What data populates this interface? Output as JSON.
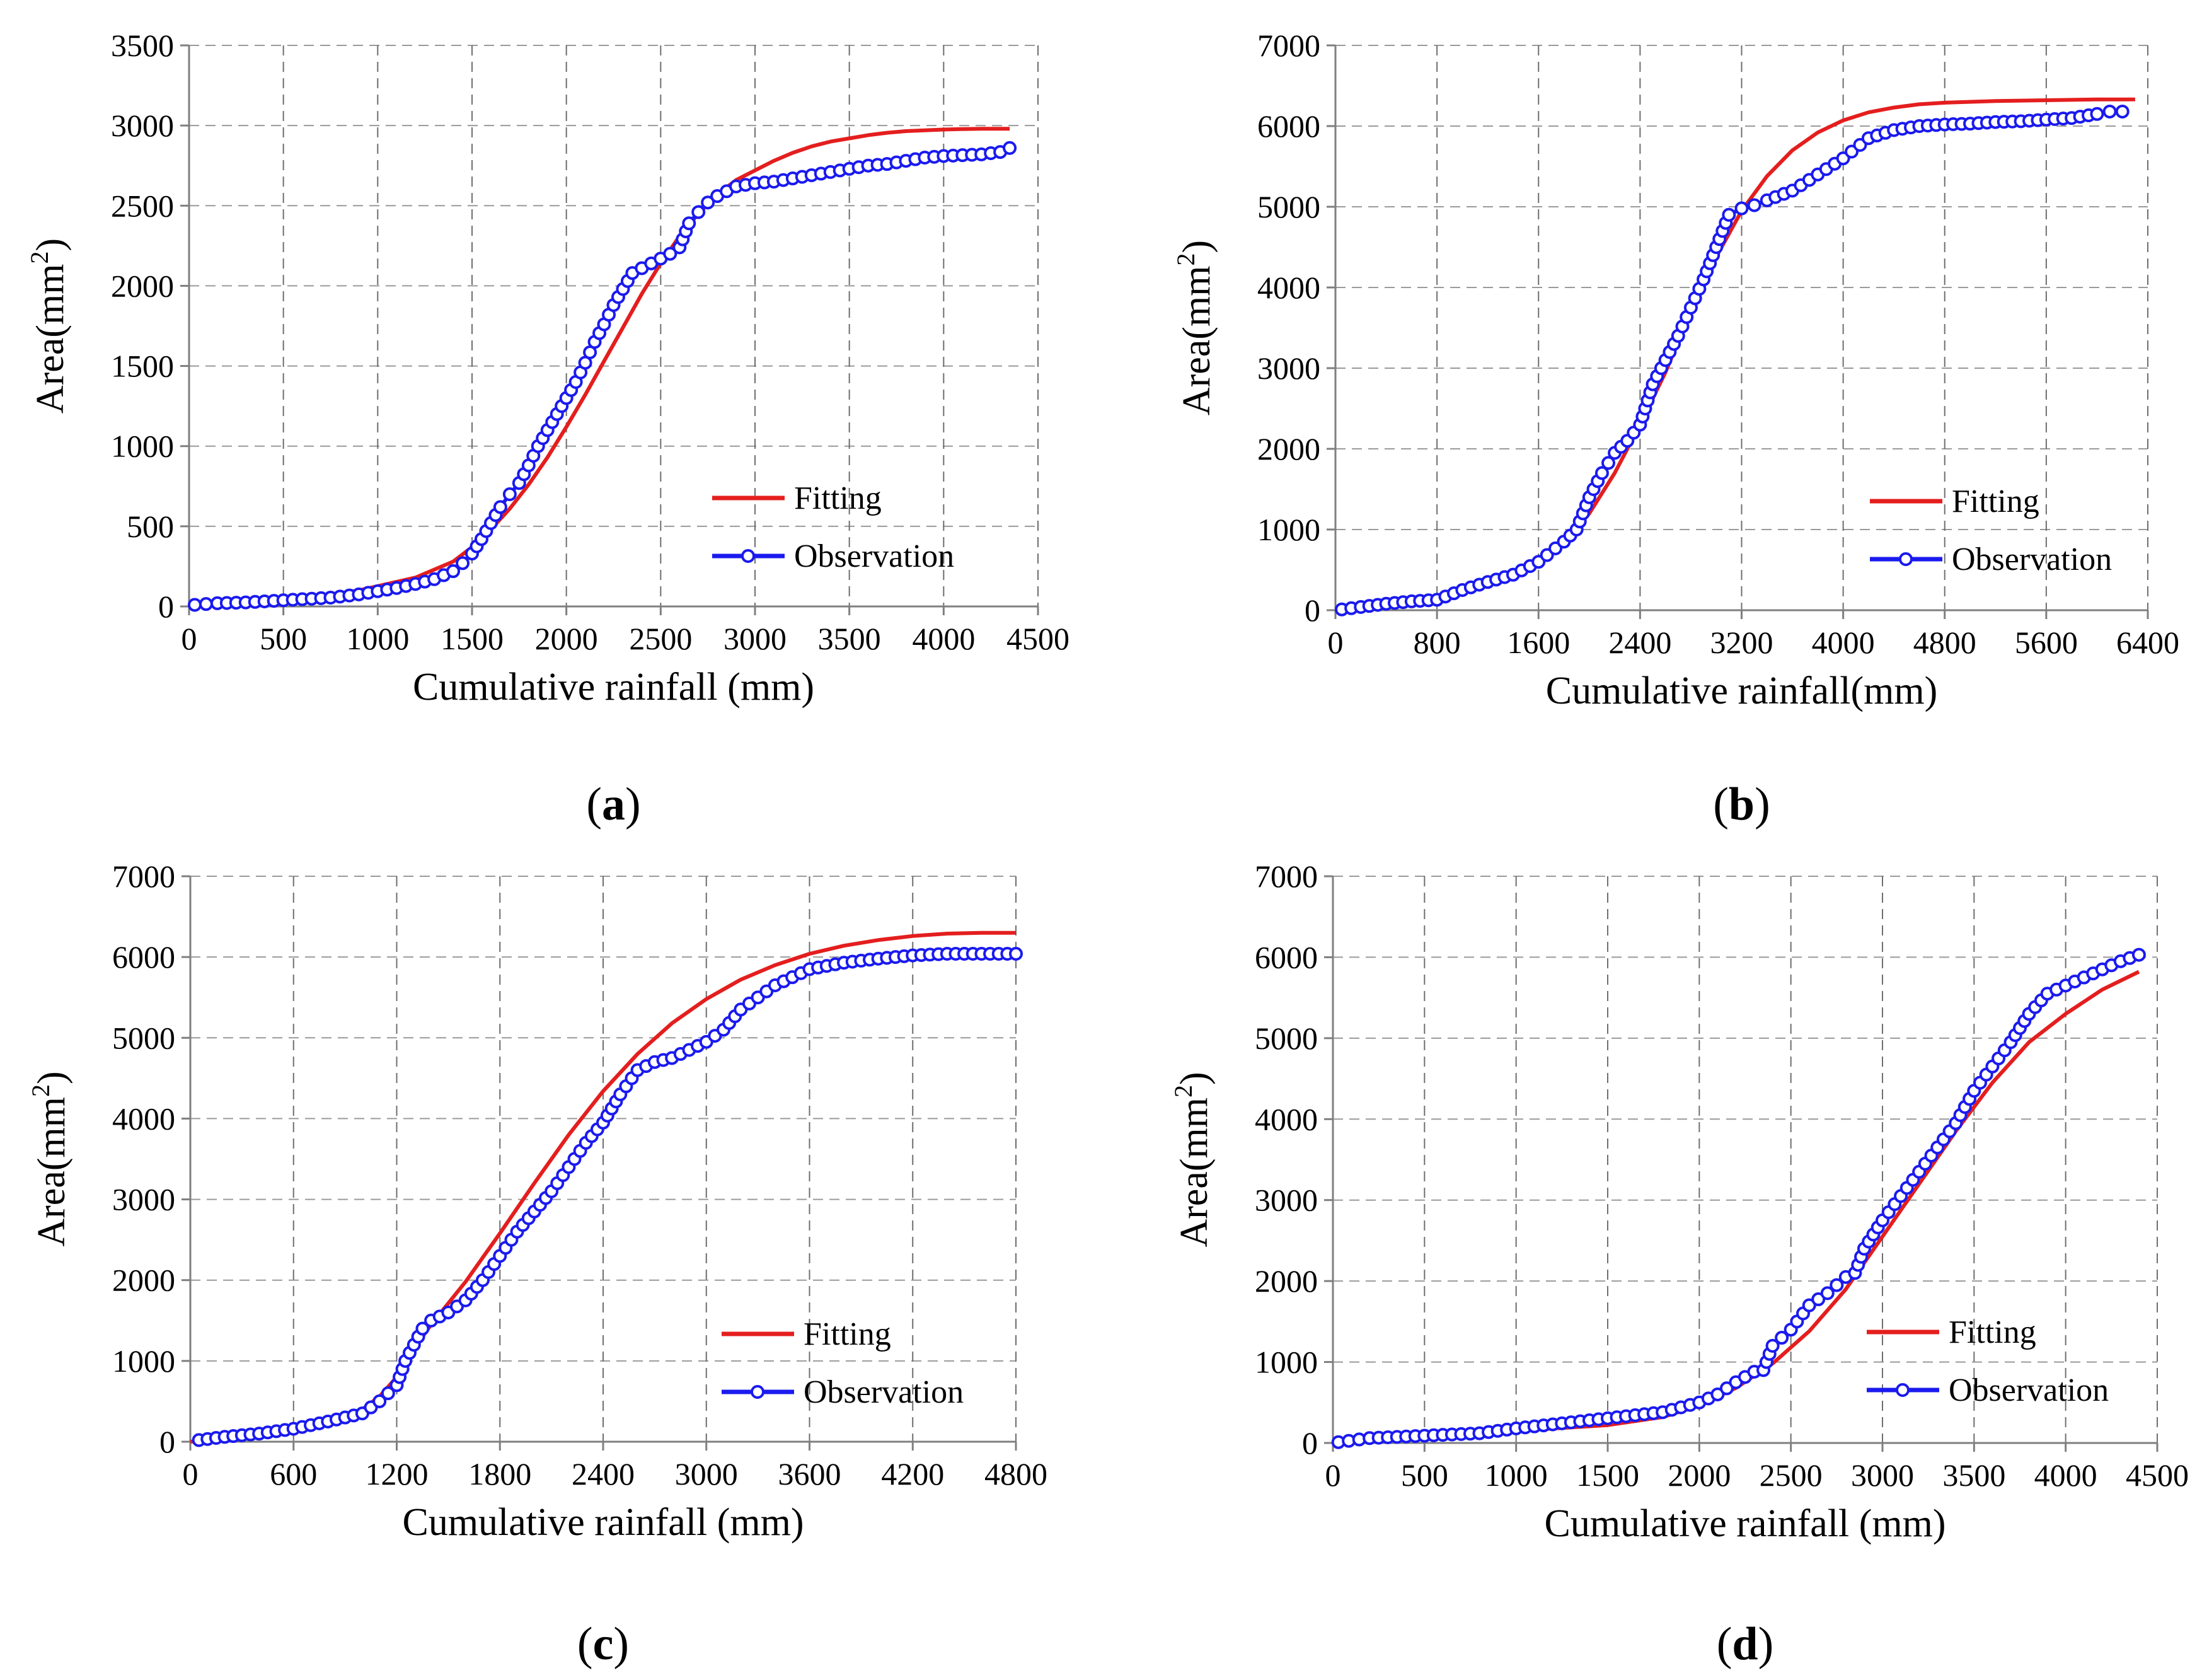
{
  "figure": {
    "fitting_color": "#e41e1e",
    "observation_color": "#1a1aef"
  },
  "chart_data": [
    {
      "id": "a",
      "type": "line",
      "panel_label": "a",
      "xlabel": "Cumulative rainfall (mm)",
      "ylabel": "Area(mm",
      "ylabel_sup": "2",
      "ylabel_end": ")",
      "xlim": [
        0,
        4500
      ],
      "ylim": [
        0,
        3500
      ],
      "xticks": [
        0,
        500,
        1000,
        1500,
        2000,
        2500,
        3000,
        3500,
        4000,
        4500
      ],
      "yticks": [
        0,
        500,
        1000,
        1500,
        2000,
        2500,
        3000,
        3500
      ],
      "legend": [
        "Fitting",
        "Observation"
      ],
      "legend_position": "bottom-right",
      "series": [
        {
          "name": "Fitting",
          "x": [
            0,
            300,
            600,
            900,
            1200,
            1400,
            1500,
            1600,
            1700,
            1800,
            1900,
            2000,
            2100,
            2200,
            2300,
            2400,
            2500,
            2600,
            2700,
            2800,
            2900,
            3000,
            3100,
            3200,
            3300,
            3400,
            3500,
            3600,
            3700,
            3800,
            3900,
            4000,
            4100,
            4200,
            4300,
            4350
          ],
          "y": [
            0,
            20,
            50,
            100,
            180,
            280,
            370,
            480,
            610,
            760,
            930,
            1120,
            1320,
            1530,
            1740,
            1950,
            2140,
            2310,
            2450,
            2570,
            2660,
            2720,
            2780,
            2830,
            2870,
            2900,
            2920,
            2940,
            2955,
            2965,
            2970,
            2975,
            2978,
            2980,
            2980,
            2980
          ]
        },
        {
          "name": "Observation",
          "x": [
            30,
            150,
            300,
            450,
            600,
            750,
            900,
            1000,
            1100,
            1200,
            1300,
            1400,
            1450,
            1500,
            1550,
            1600,
            1650,
            1700,
            1750,
            1800,
            1850,
            1900,
            1950,
            2000,
            2050,
            2100,
            2150,
            2200,
            2250,
            2300,
            2350,
            2400,
            2450,
            2500,
            2550,
            2600,
            2650,
            2700,
            2750,
            2800,
            2900,
            3000,
            3100,
            3200,
            3300,
            3400,
            3500,
            3600,
            3700,
            3800,
            3900,
            4000,
            4100,
            4200,
            4300,
            4350
          ],
          "y": [
            10,
            20,
            25,
            35,
            45,
            55,
            75,
            95,
            115,
            140,
            170,
            220,
            270,
            330,
            420,
            520,
            620,
            700,
            770,
            880,
            1000,
            1100,
            1200,
            1300,
            1400,
            1520,
            1650,
            1760,
            1880,
            1980,
            2080,
            2110,
            2140,
            2170,
            2200,
            2240,
            2390,
            2460,
            2520,
            2560,
            2620,
            2640,
            2650,
            2670,
            2690,
            2710,
            2730,
            2750,
            2760,
            2780,
            2800,
            2810,
            2815,
            2820,
            2835,
            2860
          ]
        }
      ]
    },
    {
      "id": "b",
      "type": "line",
      "panel_label": "b",
      "xlabel": "Cumulative rainfall(mm)",
      "ylabel": "Area(mm",
      "ylabel_sup": "2",
      "ylabel_end": ")",
      "xlim": [
        0,
        6400
      ],
      "ylim": [
        0,
        7000
      ],
      "xticks": [
        0,
        800,
        1600,
        2400,
        3200,
        4000,
        4800,
        5600,
        6400
      ],
      "yticks": [
        0,
        1000,
        2000,
        3000,
        4000,
        5000,
        6000,
        7000
      ],
      "legend": [
        "Fitting",
        "Observation"
      ],
      "legend_position": "bottom-right",
      "series": [
        {
          "name": "Fitting",
          "x": [
            0,
            400,
            800,
            1000,
            1200,
            1400,
            1600,
            1800,
            2000,
            2200,
            2400,
            2600,
            2800,
            3000,
            3200,
            3400,
            3600,
            3800,
            4000,
            4200,
            4400,
            4600,
            4800,
            5200,
            5600,
            6000,
            6300
          ],
          "y": [
            0,
            40,
            110,
            200,
            330,
            450,
            620,
            830,
            1200,
            1700,
            2300,
            2950,
            3700,
            4380,
            4950,
            5380,
            5700,
            5920,
            6070,
            6170,
            6230,
            6270,
            6290,
            6310,
            6320,
            6330,
            6330
          ]
        },
        {
          "name": "Observation",
          "x": [
            50,
            200,
            400,
            600,
            800,
            1000,
            1200,
            1400,
            1600,
            1800,
            1900,
            2000,
            2100,
            2200,
            2300,
            2400,
            2500,
            2600,
            2700,
            2800,
            2900,
            3000,
            3100,
            3200,
            3300,
            3400,
            3600,
            3800,
            4000,
            4200,
            4400,
            4600,
            4800,
            5000,
            5200,
            5400,
            5600,
            5800,
            6000,
            6100,
            6200
          ],
          "y": [
            10,
            40,
            80,
            110,
            130,
            250,
            350,
            440,
            600,
            850,
            1000,
            1400,
            1700,
            1950,
            2100,
            2300,
            2800,
            3100,
            3400,
            3750,
            4100,
            4500,
            4900,
            4980,
            5020,
            5080,
            5200,
            5400,
            5600,
            5850,
            5950,
            6000,
            6020,
            6030,
            6050,
            6060,
            6080,
            6100,
            6150,
            6180,
            6180
          ]
        }
      ]
    },
    {
      "id": "c",
      "type": "line",
      "panel_label": "c",
      "xlabel": "Cumulative rainfall (mm)",
      "ylabel": "Area(mm",
      "ylabel_sup": "2",
      "ylabel_end": ")",
      "xlim": [
        0,
        4800
      ],
      "ylim": [
        0,
        7000
      ],
      "xticks": [
        0,
        600,
        1200,
        1800,
        2400,
        3000,
        3600,
        4200,
        4800
      ],
      "yticks": [
        0,
        1000,
        2000,
        3000,
        4000,
        5000,
        6000,
        7000
      ],
      "legend": [
        "Fitting",
        "Observation"
      ],
      "legend_position": "bottom-right",
      "series": [
        {
          "name": "Fitting",
          "x": [
            0,
            300,
            600,
            900,
            1000,
            1100,
            1200,
            1300,
            1400,
            1600,
            1800,
            2000,
            2200,
            2400,
            2600,
            2800,
            3000,
            3200,
            3400,
            3600,
            3800,
            4000,
            4200,
            4400,
            4600,
            4800
          ],
          "y": [
            0,
            60,
            150,
            300,
            400,
            560,
            800,
            1150,
            1450,
            1980,
            2580,
            3200,
            3800,
            4340,
            4800,
            5180,
            5480,
            5720,
            5900,
            6040,
            6140,
            6210,
            6260,
            6290,
            6300,
            6300
          ]
        },
        {
          "name": "Observation",
          "x": [
            50,
            200,
            400,
            600,
            800,
            1000,
            1100,
            1200,
            1250,
            1300,
            1350,
            1400,
            1500,
            1600,
            1700,
            1800,
            1900,
            2000,
            2100,
            2200,
            2300,
            2400,
            2500,
            2600,
            2700,
            2800,
            2900,
            3000,
            3100,
            3200,
            3300,
            3400,
            3500,
            3600,
            3800,
            4000,
            4200,
            4400,
            4600,
            4800
          ],
          "y": [
            20,
            60,
            100,
            160,
            250,
            350,
            500,
            700,
            1000,
            1200,
            1400,
            1500,
            1600,
            1750,
            2000,
            2300,
            2600,
            2850,
            3100,
            3400,
            3700,
            3950,
            4300,
            4600,
            4700,
            4750,
            4850,
            4950,
            5100,
            5350,
            5500,
            5650,
            5750,
            5850,
            5930,
            5980,
            6020,
            6040,
            6040,
            6040
          ]
        }
      ]
    },
    {
      "id": "d",
      "type": "line",
      "panel_label": "d",
      "xlabel": "Cumulative rainfall (mm)",
      "ylabel": "Area(mm",
      "ylabel_sup": "2",
      "ylabel_end": ")",
      "xlim": [
        0,
        4500
      ],
      "ylim": [
        0,
        7000
      ],
      "xticks": [
        0,
        500,
        1000,
        1500,
        2000,
        2500,
        3000,
        3500,
        4000,
        4500
      ],
      "yticks": [
        0,
        1000,
        2000,
        3000,
        4000,
        5000,
        6000,
        7000
      ],
      "legend": [
        "Fitting",
        "Observation"
      ],
      "legend_position": "bottom-right",
      "series": [
        {
          "name": "Fitting",
          "x": [
            0,
            500,
            1000,
            1500,
            1800,
            2000,
            2200,
            2400,
            2600,
            2800,
            3000,
            3200,
            3400,
            3600,
            3800,
            4000,
            4200,
            4400
          ],
          "y": [
            0,
            60,
            150,
            220,
            320,
            460,
            680,
            980,
            1380,
            1900,
            2550,
            3200,
            3850,
            4450,
            4950,
            5300,
            5600,
            5820
          ]
        },
        {
          "name": "Observation",
          "x": [
            30,
            200,
            400,
            600,
            800,
            1000,
            1200,
            1400,
            1600,
            1800,
            2000,
            2100,
            2200,
            2300,
            2350,
            2400,
            2500,
            2600,
            2700,
            2800,
            2850,
            2900,
            3000,
            3100,
            3200,
            3300,
            3400,
            3500,
            3600,
            3700,
            3800,
            3900,
            4000,
            4100,
            4200,
            4300,
            4400
          ],
          "y": [
            10,
            60,
            80,
            100,
            120,
            180,
            230,
            280,
            330,
            380,
            500,
            600,
            750,
            880,
            900,
            1200,
            1400,
            1700,
            1850,
            2050,
            2100,
            2400,
            2750,
            3050,
            3350,
            3650,
            3950,
            4350,
            4650,
            4950,
            5300,
            5550,
            5650,
            5750,
            5850,
            5950,
            6030
          ]
        }
      ]
    }
  ]
}
